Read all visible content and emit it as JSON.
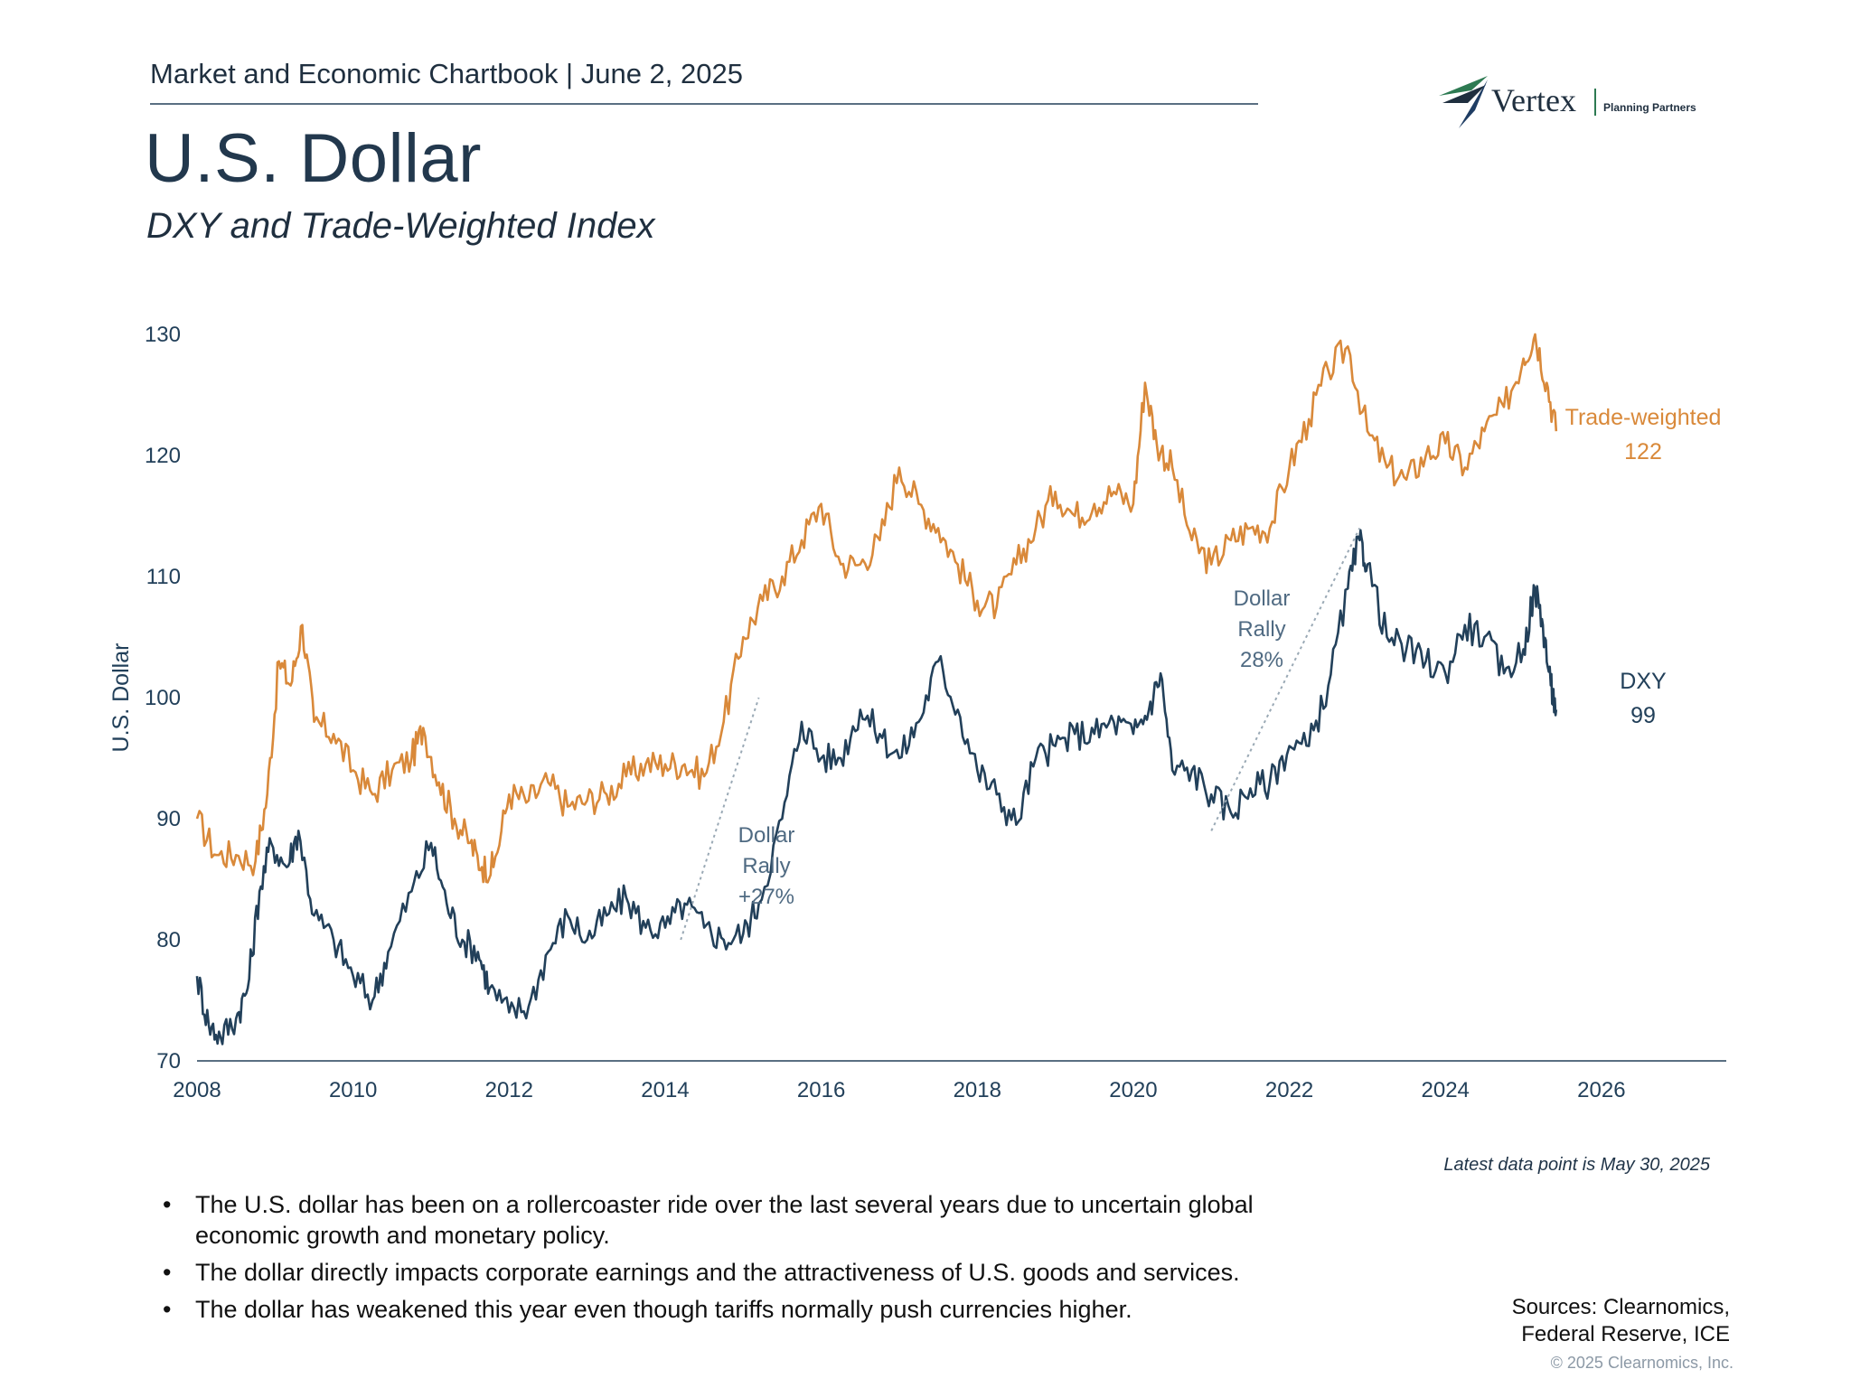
{
  "header": {
    "chartbook": "Market and Economic Chartbook | June 2, 2025",
    "title": "U.S. Dollar",
    "subtitle": "DXY and Trade-Weighted Index"
  },
  "logo": {
    "name": "Vertex",
    "tagline": "Planning Partners"
  },
  "colors": {
    "dxy": "#22405a",
    "trade_weighted": "#d9893a",
    "axis": "#5a6f82",
    "rally_line": "#9aa9b5"
  },
  "chart_data": {
    "type": "line",
    "ylabel": "U.S. Dollar",
    "xlabel": "",
    "ylim": [
      70,
      130
    ],
    "xlim": [
      2008,
      2027.6
    ],
    "yticks": [
      70,
      80,
      90,
      100,
      110,
      120,
      130
    ],
    "xticks": [
      2008,
      2010,
      2012,
      2014,
      2016,
      2018,
      2020,
      2022,
      2024,
      2026
    ],
    "grid": false,
    "series": [
      {
        "name": "Trade-weighted",
        "end_label": "Trade-weighted",
        "end_value": "122",
        "x": [
          2008.0,
          2008.25,
          2008.5,
          2008.75,
          2008.9,
          2009.05,
          2009.2,
          2009.35,
          2009.5,
          2009.75,
          2010.0,
          2010.25,
          2010.5,
          2010.75,
          2010.9,
          2011.1,
          2011.3,
          2011.5,
          2011.65,
          2011.8,
          2012.0,
          2012.25,
          2012.5,
          2012.75,
          2013.0,
          2013.25,
          2013.5,
          2013.75,
          2014.0,
          2014.25,
          2014.5,
          2014.75,
          2015.0,
          2015.25,
          2015.5,
          2015.75,
          2016.0,
          2016.25,
          2016.5,
          2016.75,
          2017.0,
          2017.25,
          2017.5,
          2017.75,
          2018.0,
          2018.25,
          2018.5,
          2018.75,
          2019.0,
          2019.25,
          2019.5,
          2019.75,
          2020.0,
          2020.15,
          2020.3,
          2020.5,
          2020.75,
          2021.0,
          2021.25,
          2021.5,
          2021.75,
          2022.0,
          2022.25,
          2022.5,
          2022.75,
          2023.0,
          2023.25,
          2023.5,
          2023.75,
          2024.0,
          2024.25,
          2024.5,
          2024.75,
          2025.0,
          2025.15,
          2025.3,
          2025.42
        ],
        "values": [
          90,
          87,
          87,
          86.5,
          92,
          103,
          101,
          106,
          98,
          97,
          94,
          92,
          94,
          95,
          97.5,
          93,
          90,
          88,
          86,
          86,
          92,
          91.5,
          93,
          91,
          91.5,
          92,
          93.5,
          94.5,
          94.5,
          94.5,
          93.5,
          98,
          105,
          108,
          110,
          113,
          116,
          111,
          111,
          113,
          119,
          116,
          114,
          111,
          108,
          107.5,
          111,
          114,
          117,
          115,
          116,
          117,
          116,
          126,
          121,
          119,
          113,
          111,
          113,
          114,
          114,
          119,
          123,
          127,
          129,
          122,
          119,
          118,
          120,
          121,
          119,
          122,
          124,
          128,
          130,
          126,
          122
        ]
      },
      {
        "name": "DXY",
        "end_label": "DXY",
        "end_value": "99",
        "x": [
          2008.0,
          2008.15,
          2008.3,
          2008.5,
          2008.65,
          2008.8,
          2008.95,
          2009.15,
          2009.3,
          2009.5,
          2009.75,
          2010.0,
          2010.25,
          2010.45,
          2010.75,
          2011.0,
          2011.2,
          2011.4,
          2011.6,
          2011.75,
          2012.0,
          2012.25,
          2012.5,
          2012.75,
          2013.0,
          2013.25,
          2013.5,
          2013.75,
          2014.0,
          2014.25,
          2014.5,
          2014.75,
          2015.0,
          2015.2,
          2015.5,
          2015.75,
          2016.0,
          2016.25,
          2016.5,
          2016.75,
          2017.0,
          2017.25,
          2017.5,
          2017.75,
          2018.0,
          2018.25,
          2018.5,
          2018.75,
          2019.0,
          2019.25,
          2019.5,
          2019.75,
          2020.0,
          2020.2,
          2020.35,
          2020.5,
          2020.75,
          2021.0,
          2021.25,
          2021.5,
          2021.75,
          2022.0,
          2022.25,
          2022.5,
          2022.75,
          2022.9,
          2023.0,
          2023.25,
          2023.5,
          2023.75,
          2024.0,
          2024.25,
          2024.5,
          2024.75,
          2025.0,
          2025.15,
          2025.25,
          2025.35,
          2025.42
        ],
        "values": [
          77,
          73,
          72,
          73.5,
          76,
          84,
          88,
          86,
          89,
          82,
          80,
          77,
          75,
          79,
          84,
          88,
          83,
          80,
          79,
          76,
          74,
          74.5,
          79,
          82,
          80,
          82,
          83.5,
          81,
          81,
          83,
          81,
          80,
          80.5,
          83,
          90,
          98,
          95,
          95,
          99,
          97,
          95,
          98,
          103,
          99,
          94,
          92,
          89.5,
          95,
          96,
          97,
          97,
          98,
          97,
          99,
          102,
          94,
          94,
          92,
          90.5,
          92.5,
          93,
          96,
          96,
          101,
          109,
          113,
          111,
          105,
          104,
          103,
          102,
          106,
          105,
          102,
          104,
          109,
          106,
          101,
          99
        ]
      }
    ],
    "annotations": [
      {
        "label": "Dollar Rally +27%",
        "line1": "Dollar",
        "line2": "Rally",
        "line3": "+27%",
        "from": [
          2014.2,
          80
        ],
        "to": [
          2015.2,
          100
        ]
      },
      {
        "label": "Dollar Rally 28%",
        "line1": "Dollar",
        "line2": "Rally",
        "line3": "28%",
        "from": [
          2021.0,
          89
        ],
        "to": [
          2022.9,
          114
        ]
      }
    ]
  },
  "footnote": "Latest data point is May 30, 2025",
  "bullets": [
    "The U.S. dollar has been on a rollercoaster ride over the last several years due to uncertain global economic growth and monetary policy.",
    "The dollar directly impacts corporate earnings and the attractiveness of U.S. goods and services.",
    "The dollar has weakened this year even though tariffs normally push currencies higher."
  ],
  "sources": {
    "line1": "Sources: Clearnomics,",
    "line2": "Federal Reserve, ICE"
  },
  "copyright": "© 2025 Clearnomics, Inc."
}
